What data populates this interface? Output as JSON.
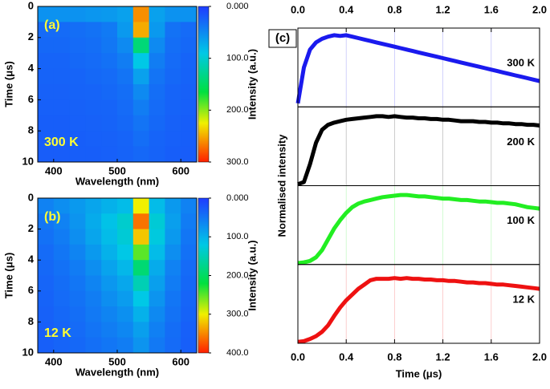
{
  "chart_data": [
    {
      "type": "heatmap",
      "label": "(a)",
      "annotation": "300 K",
      "xlabel": "Wavelength (nm)",
      "ylabel": "Time (μs)",
      "colorbar_label": "Intensity (a.u.)",
      "x": [
        387.5,
        412.5,
        437.5,
        462.5,
        487.5,
        512.5,
        537.5,
        562.5,
        587.5,
        612.5
      ],
      "y": [
        0.5,
        1.5,
        2.5,
        3.5,
        4.5,
        5.5,
        6.5,
        7.5,
        8.5,
        9.5
      ],
      "z": [
        [
          55,
          55,
          55,
          58,
          60,
          65,
          260,
          65,
          55,
          55
        ],
        [
          30,
          30,
          32,
          35,
          40,
          60,
          250,
          60,
          35,
          30
        ],
        [
          28,
          28,
          30,
          32,
          38,
          50,
          140,
          50,
          32,
          28
        ],
        [
          26,
          26,
          28,
          30,
          34,
          42,
          90,
          42,
          30,
          26
        ],
        [
          25,
          25,
          26,
          28,
          30,
          36,
          65,
          36,
          28,
          25
        ],
        [
          24,
          24,
          25,
          26,
          28,
          32,
          50,
          32,
          26,
          24
        ],
        [
          23,
          23,
          24,
          25,
          26,
          30,
          42,
          30,
          25,
          23
        ],
        [
          22,
          22,
          23,
          24,
          25,
          28,
          36,
          28,
          24,
          22
        ],
        [
          22,
          22,
          22,
          23,
          24,
          26,
          32,
          26,
          23,
          22
        ],
        [
          21,
          21,
          22,
          22,
          23,
          25,
          28,
          25,
          22,
          21
        ]
      ],
      "xlim": [
        375,
        625
      ],
      "xticks": [
        400,
        500,
        600
      ],
      "ylim": [
        0,
        10
      ],
      "y_reversed": true,
      "yticks": [
        0,
        2,
        4,
        6,
        8,
        10
      ],
      "zlim": [
        0,
        300
      ],
      "zticks": [
        {
          "value": 0,
          "label": "0.000"
        },
        {
          "value": 100,
          "label": "100.0"
        },
        {
          "value": 200,
          "label": "200.0"
        },
        {
          "value": 300,
          "label": "300.0"
        }
      ]
    },
    {
      "type": "heatmap",
      "label": "(b)",
      "annotation": "12 K",
      "xlabel": "Wavelength (nm)",
      "ylabel": "Time (μs)",
      "colorbar_label": "Intensity (a.u.)",
      "x": [
        387.5,
        412.5,
        437.5,
        462.5,
        487.5,
        512.5,
        537.5,
        562.5,
        587.5,
        612.5
      ],
      "y": [
        0.5,
        1.5,
        2.5,
        3.5,
        4.5,
        5.5,
        6.5,
        7.5,
        8.5,
        9.5
      ],
      "z": [
        [
          60,
          70,
          80,
          90,
          100,
          110,
          300,
          110,
          80,
          60
        ],
        [
          50,
          60,
          75,
          95,
          115,
          135,
          360,
          130,
          85,
          55
        ],
        [
          45,
          55,
          70,
          90,
          110,
          130,
          320,
          125,
          80,
          50
        ],
        [
          40,
          50,
          62,
          80,
          100,
          120,
          250,
          110,
          70,
          45
        ],
        [
          38,
          45,
          55,
          70,
          88,
          105,
          190,
          95,
          60,
          40
        ],
        [
          35,
          42,
          50,
          62,
          78,
          92,
          150,
          85,
          55,
          38
        ],
        [
          33,
          40,
          46,
          56,
          70,
          82,
          120,
          75,
          50,
          35
        ],
        [
          32,
          38,
          43,
          52,
          62,
          72,
          100,
          66,
          46,
          33
        ],
        [
          30,
          35,
          40,
          48,
          56,
          64,
          85,
          58,
          42,
          31
        ],
        [
          30,
          34,
          38,
          44,
          50,
          56,
          75,
          52,
          40,
          30
        ]
      ],
      "xlim": [
        375,
        625
      ],
      "xticks": [
        400,
        500,
        600
      ],
      "ylim": [
        0,
        10
      ],
      "y_reversed": true,
      "yticks": [
        0,
        2,
        4,
        6,
        8,
        10
      ],
      "zlim": [
        0,
        400
      ],
      "zticks": [
        {
          "value": 0,
          "label": "0.000"
        },
        {
          "value": 100,
          "label": "100.0"
        },
        {
          "value": 200,
          "label": "200.0"
        },
        {
          "value": 300,
          "label": "300.0"
        },
        {
          "value": 400,
          "label": "400.0"
        }
      ]
    },
    {
      "type": "line",
      "label": "(c)",
      "layout": "stacked",
      "xlabel": "Time (μs)",
      "ylabel": "Normalised intensity",
      "x": [
        0,
        0.05,
        0.1,
        0.15,
        0.2,
        0.25,
        0.3,
        0.35,
        0.4,
        0.45,
        0.5,
        0.55,
        0.6,
        0.65,
        0.7,
        0.75,
        0.8,
        0.85,
        0.9,
        0.95,
        1.0,
        1.05,
        1.1,
        1.15,
        1.2,
        1.25,
        1.3,
        1.35,
        1.4,
        1.45,
        1.5,
        1.55,
        1.6,
        1.65,
        1.7,
        1.75,
        1.8,
        1.85,
        1.9,
        1.95,
        2.0
      ],
      "xlim": [
        0,
        2
      ],
      "xticks": [
        {
          "value": 0,
          "label": "0.0"
        },
        0.4,
        0.8,
        1.2,
        1.6,
        {
          "value": 2,
          "label": "2.0"
        }
      ],
      "ylim": [
        0,
        1.1
      ],
      "grid": true,
      "series": [
        {
          "name": "300 K",
          "color": "#1a1aee",
          "values": [
            0.05,
            0.55,
            0.8,
            0.9,
            0.95,
            0.98,
            1.0,
            0.99,
            1.0,
            0.98,
            0.96,
            0.94,
            0.92,
            0.9,
            0.88,
            0.86,
            0.84,
            0.82,
            0.8,
            0.78,
            0.76,
            0.74,
            0.72,
            0.7,
            0.68,
            0.66,
            0.64,
            0.62,
            0.6,
            0.58,
            0.56,
            0.54,
            0.52,
            0.5,
            0.48,
            0.46,
            0.44,
            0.42,
            0.4,
            0.38,
            0.36
          ]
        },
        {
          "name": "200 K",
          "color": "#000000",
          "values": [
            0.02,
            0.05,
            0.3,
            0.6,
            0.78,
            0.85,
            0.88,
            0.9,
            0.92,
            0.93,
            0.94,
            0.95,
            0.96,
            0.97,
            0.97,
            0.96,
            0.97,
            0.96,
            0.95,
            0.95,
            0.94,
            0.94,
            0.93,
            0.93,
            0.92,
            0.92,
            0.91,
            0.9,
            0.9,
            0.9,
            0.89,
            0.89,
            0.88,
            0.88,
            0.87,
            0.87,
            0.86,
            0.86,
            0.85,
            0.85,
            0.84
          ]
        },
        {
          "name": "100 K",
          "color": "#22ee22",
          "values": [
            0.02,
            0.03,
            0.05,
            0.1,
            0.2,
            0.35,
            0.5,
            0.62,
            0.72,
            0.8,
            0.85,
            0.88,
            0.9,
            0.92,
            0.94,
            0.95,
            0.96,
            0.97,
            0.97,
            0.96,
            0.95,
            0.95,
            0.94,
            0.93,
            0.92,
            0.92,
            0.91,
            0.9,
            0.9,
            0.89,
            0.88,
            0.88,
            0.87,
            0.86,
            0.86,
            0.85,
            0.84,
            0.82,
            0.8,
            0.79,
            0.78
          ]
        },
        {
          "name": "12 K",
          "color": "#ee1111",
          "values": [
            0.02,
            0.03,
            0.06,
            0.1,
            0.16,
            0.25,
            0.38,
            0.5,
            0.6,
            0.68,
            0.76,
            0.82,
            0.88,
            0.9,
            0.9,
            0.9,
            0.91,
            0.9,
            0.91,
            0.9,
            0.9,
            0.89,
            0.89,
            0.88,
            0.88,
            0.87,
            0.87,
            0.86,
            0.85,
            0.85,
            0.84,
            0.84,
            0.83,
            0.82,
            0.82,
            0.81,
            0.8,
            0.79,
            0.78,
            0.77,
            0.76
          ]
        }
      ]
    }
  ]
}
